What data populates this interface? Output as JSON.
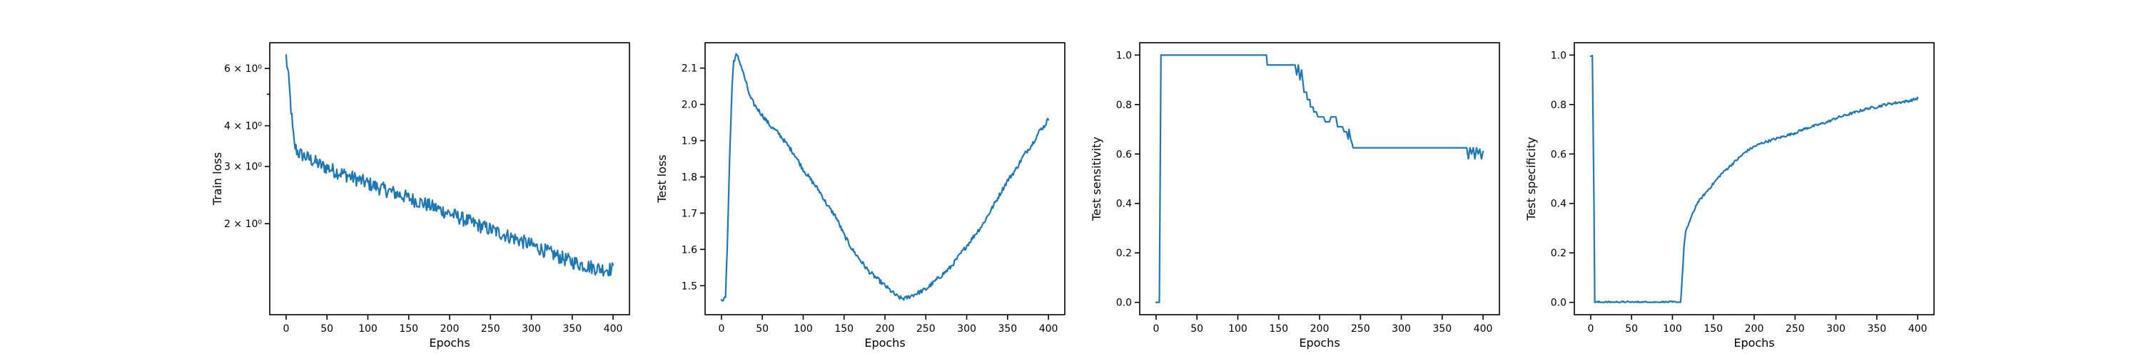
{
  "chart_data": [
    {
      "type": "line",
      "xlabel": "Epochs",
      "ylabel": "Train loss",
      "yscale": "log",
      "xlim": [
        -20,
        420
      ],
      "ylim": [
        1.05,
        7.2
      ],
      "xticks": [
        0,
        50,
        100,
        150,
        200,
        250,
        300,
        350,
        400
      ],
      "yticks": [
        {
          "value": 2,
          "label": "2 × 10⁰"
        },
        {
          "value": 3,
          "label": "3 × 10⁰"
        },
        {
          "value": 4,
          "label": "4 × 10⁰"
        },
        {
          "value": 6,
          "label": "6 × 10⁰"
        }
      ],
      "ytick_minor": [
        5
      ],
      "grid": false,
      "color": "#1f77b4",
      "series": [
        {
          "x": [
            0,
            2,
            4,
            6,
            8,
            10,
            12,
            15,
            20,
            25,
            30,
            35,
            40,
            45,
            50,
            60,
            70,
            80,
            90,
            100,
            110,
            120,
            130,
            140,
            150,
            160,
            170,
            180,
            190,
            200,
            210,
            220,
            230,
            240,
            250,
            260,
            270,
            280,
            290,
            300,
            310,
            320,
            330,
            340,
            350,
            360,
            370,
            380,
            390,
            400
          ],
          "y": [
            6.5,
            5.9,
            5.2,
            4.5,
            3.9,
            3.5,
            3.4,
            3.3,
            3.25,
            3.2,
            3.15,
            3.1,
            3.05,
            3.0,
            2.98,
            2.9,
            2.85,
            2.78,
            2.72,
            2.66,
            2.6,
            2.55,
            2.5,
            2.45,
            2.4,
            2.35,
            2.3,
            2.25,
            2.2,
            2.15,
            2.1,
            2.05,
            2.0,
            1.96,
            1.92,
            1.88,
            1.84,
            1.8,
            1.76,
            1.72,
            1.68,
            1.64,
            1.6,
            1.56,
            1.53,
            1.5,
            1.48,
            1.46,
            1.45,
            1.45
          ],
          "noise": 0.05
        }
      ]
    },
    {
      "type": "line",
      "xlabel": "Epochs",
      "ylabel": "Test loss",
      "xlim": [
        -20,
        420
      ],
      "ylim": [
        1.42,
        2.17
      ],
      "xticks": [
        0,
        50,
        100,
        150,
        200,
        250,
        300,
        350,
        400
      ],
      "yticks": [
        {
          "value": 1.5,
          "label": "1.5"
        },
        {
          "value": 1.6,
          "label": "1.6"
        },
        {
          "value": 1.7,
          "label": "1.7"
        },
        {
          "value": 1.8,
          "label": "1.8"
        },
        {
          "value": 1.9,
          "label": "1.9"
        },
        {
          "value": 2.0,
          "label": "2.0"
        },
        {
          "value": 2.1,
          "label": "2.1"
        }
      ],
      "grid": false,
      "color": "#1f77b4",
      "series": [
        {
          "x": [
            0,
            3,
            5,
            7,
            10,
            13,
            15,
            18,
            20,
            22,
            25,
            30,
            35,
            40,
            50,
            60,
            70,
            80,
            90,
            100,
            110,
            120,
            130,
            140,
            150,
            160,
            170,
            180,
            190,
            200,
            210,
            215,
            220,
            225,
            230,
            240,
            250,
            260,
            270,
            280,
            290,
            300,
            310,
            320,
            330,
            340,
            350,
            360,
            370,
            380,
            390,
            395,
            400
          ],
          "y": [
            1.465,
            1.46,
            1.47,
            1.6,
            1.85,
            2.05,
            2.12,
            2.135,
            2.13,
            2.12,
            2.1,
            2.06,
            2.02,
            2.0,
            1.97,
            1.94,
            1.92,
            1.89,
            1.86,
            1.82,
            1.79,
            1.76,
            1.72,
            1.69,
            1.64,
            1.6,
            1.57,
            1.54,
            1.52,
            1.5,
            1.48,
            1.47,
            1.465,
            1.465,
            1.47,
            1.48,
            1.49,
            1.51,
            1.53,
            1.55,
            1.58,
            1.61,
            1.64,
            1.67,
            1.71,
            1.75,
            1.79,
            1.82,
            1.86,
            1.89,
            1.93,
            1.94,
            1.96
          ],
          "noise": 0.006
        }
      ]
    },
    {
      "type": "line",
      "xlabel": "Epochs",
      "ylabel": "Test sensitivity",
      "xlim": [
        -20,
        420
      ],
      "ylim": [
        -0.05,
        1.05
      ],
      "xticks": [
        0,
        50,
        100,
        150,
        200,
        250,
        300,
        350,
        400
      ],
      "yticks": [
        {
          "value": 0.0,
          "label": "0.0"
        },
        {
          "value": 0.2,
          "label": "0.2"
        },
        {
          "value": 0.4,
          "label": "0.4"
        },
        {
          "value": 0.6,
          "label": "0.6"
        },
        {
          "value": 0.8,
          "label": "0.8"
        },
        {
          "value": 1.0,
          "label": "1.0"
        }
      ],
      "grid": false,
      "color": "#1f77b4",
      "series": [
        {
          "x": [
            0,
            4,
            5,
            6,
            135,
            136,
            170,
            172,
            174,
            176,
            178,
            180,
            181,
            184,
            185,
            188,
            189,
            192,
            193,
            196,
            198,
            205,
            207,
            212,
            214,
            220,
            222,
            228,
            230,
            233,
            235,
            236,
            238,
            240,
            241,
            380,
            382,
            384,
            386,
            388,
            390,
            392,
            394,
            396,
            398,
            400
          ],
          "y": [
            0.0,
            0.0,
            0.5,
            1.0,
            1.0,
            0.96,
            0.96,
            0.92,
            0.96,
            0.9,
            0.94,
            0.88,
            0.85,
            0.85,
            0.82,
            0.82,
            0.79,
            0.79,
            0.77,
            0.77,
            0.75,
            0.75,
            0.73,
            0.73,
            0.75,
            0.75,
            0.71,
            0.71,
            0.69,
            0.69,
            0.66,
            0.7,
            0.66,
            0.64,
            0.625,
            0.625,
            0.58,
            0.625,
            0.6,
            0.625,
            0.58,
            0.625,
            0.6,
            0.62,
            0.58,
            0.61
          ],
          "noise": 0
        }
      ]
    },
    {
      "type": "line",
      "xlabel": "Epochs",
      "ylabel": "Test specificity",
      "xlim": [
        -20,
        420
      ],
      "ylim": [
        -0.05,
        1.05
      ],
      "xticks": [
        0,
        50,
        100,
        150,
        200,
        250,
        300,
        350,
        400
      ],
      "yticks": [
        {
          "value": 0.0,
          "label": "0.0"
        },
        {
          "value": 0.2,
          "label": "0.2"
        },
        {
          "value": 0.4,
          "label": "0.4"
        },
        {
          "value": 0.6,
          "label": "0.6"
        },
        {
          "value": 0.8,
          "label": "0.8"
        },
        {
          "value": 1.0,
          "label": "1.0"
        }
      ],
      "grid": false,
      "color": "#1f77b4",
      "series": [
        {
          "x": [
            0,
            2,
            4,
            5,
            110,
            112,
            114,
            116,
            120,
            125,
            130,
            140,
            150,
            160,
            170,
            180,
            190,
            200,
            210,
            220,
            230,
            240,
            250,
            260,
            270,
            280,
            290,
            300,
            310,
            320,
            330,
            340,
            350,
            360,
            370,
            380,
            390,
            400
          ],
          "y": [
            1.0,
            1.0,
            0.4,
            0.0,
            0.0,
            0.1,
            0.22,
            0.28,
            0.32,
            0.36,
            0.4,
            0.44,
            0.48,
            0.52,
            0.55,
            0.58,
            0.61,
            0.63,
            0.645,
            0.655,
            0.665,
            0.675,
            0.685,
            0.7,
            0.71,
            0.72,
            0.73,
            0.745,
            0.755,
            0.765,
            0.775,
            0.785,
            0.79,
            0.8,
            0.805,
            0.81,
            0.815,
            0.825
          ],
          "noise": 0.005
        }
      ]
    }
  ]
}
